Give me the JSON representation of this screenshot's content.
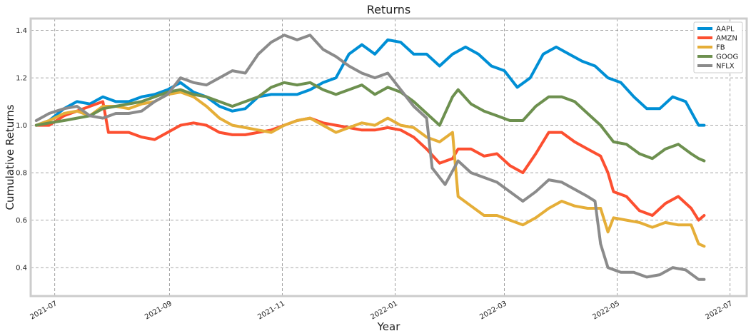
{
  "chart_data": {
    "type": "line",
    "title": "Returns",
    "xlabel": "Year",
    "ylabel": "Cumulative Returns",
    "xlim": [
      "2021-06-18",
      "2022-07-10"
    ],
    "ylim": [
      0.28,
      1.45
    ],
    "x_ticks": [
      "2021-07",
      "2021-09",
      "2021-11",
      "2022-01",
      "2022-03",
      "2022-05",
      "2022-07"
    ],
    "y_ticks": [
      "0.4",
      "0.6",
      "0.8",
      "1.0",
      "1.2",
      "1.4"
    ],
    "grid": true,
    "legend_position": "top-right",
    "series": [
      {
        "name": "AAPL",
        "color": "#008fd5",
        "points": [
          [
            "2021-06-21",
            1.0
          ],
          [
            "2021-06-28",
            1.02
          ],
          [
            "2021-07-06",
            1.07
          ],
          [
            "2021-07-13",
            1.1
          ],
          [
            "2021-07-20",
            1.09
          ],
          [
            "2021-07-27",
            1.12
          ],
          [
            "2021-08-03",
            1.1
          ],
          [
            "2021-08-10",
            1.1
          ],
          [
            "2021-08-17",
            1.12
          ],
          [
            "2021-08-24",
            1.13
          ],
          [
            "2021-08-31",
            1.15
          ],
          [
            "2021-09-07",
            1.18
          ],
          [
            "2021-09-14",
            1.14
          ],
          [
            "2021-09-21",
            1.12
          ],
          [
            "2021-09-28",
            1.08
          ],
          [
            "2021-10-05",
            1.06
          ],
          [
            "2021-10-12",
            1.07
          ],
          [
            "2021-10-19",
            1.12
          ],
          [
            "2021-10-26",
            1.13
          ],
          [
            "2021-11-02",
            1.13
          ],
          [
            "2021-11-09",
            1.13
          ],
          [
            "2021-11-16",
            1.15
          ],
          [
            "2021-11-23",
            1.18
          ],
          [
            "2021-11-30",
            1.2
          ],
          [
            "2021-12-07",
            1.3
          ],
          [
            "2021-12-14",
            1.34
          ],
          [
            "2021-12-21",
            1.3
          ],
          [
            "2021-12-28",
            1.36
          ],
          [
            "2022-01-04",
            1.35
          ],
          [
            "2022-01-11",
            1.3
          ],
          [
            "2022-01-18",
            1.3
          ],
          [
            "2022-01-25",
            1.25
          ],
          [
            "2022-02-01",
            1.3
          ],
          [
            "2022-02-08",
            1.33
          ],
          [
            "2022-02-15",
            1.3
          ],
          [
            "2022-02-22",
            1.25
          ],
          [
            "2022-03-01",
            1.23
          ],
          [
            "2022-03-08",
            1.16
          ],
          [
            "2022-03-15",
            1.2
          ],
          [
            "2022-03-22",
            1.3
          ],
          [
            "2022-03-29",
            1.33
          ],
          [
            "2022-04-05",
            1.3
          ],
          [
            "2022-04-12",
            1.27
          ],
          [
            "2022-04-19",
            1.25
          ],
          [
            "2022-04-26",
            1.2
          ],
          [
            "2022-05-03",
            1.18
          ],
          [
            "2022-05-10",
            1.12
          ],
          [
            "2022-05-17",
            1.07
          ],
          [
            "2022-05-24",
            1.07
          ],
          [
            "2022-05-31",
            1.12
          ],
          [
            "2022-06-07",
            1.1
          ],
          [
            "2022-06-14",
            1.0
          ],
          [
            "2022-06-17",
            1.0
          ]
        ]
      },
      {
        "name": "AMZN",
        "color": "#fc4f30",
        "points": [
          [
            "2021-06-21",
            1.0
          ],
          [
            "2021-06-28",
            1.0
          ],
          [
            "2021-07-06",
            1.04
          ],
          [
            "2021-07-13",
            1.06
          ],
          [
            "2021-07-20",
            1.08
          ],
          [
            "2021-07-27",
            1.1
          ],
          [
            "2021-07-30",
            0.97
          ],
          [
            "2021-08-10",
            0.97
          ],
          [
            "2021-08-17",
            0.95
          ],
          [
            "2021-08-24",
            0.94
          ],
          [
            "2021-08-31",
            0.97
          ],
          [
            "2021-09-07",
            1.0
          ],
          [
            "2021-09-14",
            1.01
          ],
          [
            "2021-09-21",
            1.0
          ],
          [
            "2021-09-28",
            0.97
          ],
          [
            "2021-10-05",
            0.96
          ],
          [
            "2021-10-12",
            0.96
          ],
          [
            "2021-10-19",
            0.97
          ],
          [
            "2021-10-26",
            0.98
          ],
          [
            "2021-11-02",
            1.0
          ],
          [
            "2021-11-09",
            1.02
          ],
          [
            "2021-11-16",
            1.03
          ],
          [
            "2021-11-23",
            1.01
          ],
          [
            "2021-11-30",
            1.0
          ],
          [
            "2021-12-07",
            0.99
          ],
          [
            "2021-12-14",
            0.98
          ],
          [
            "2021-12-21",
            0.98
          ],
          [
            "2021-12-28",
            0.99
          ],
          [
            "2022-01-04",
            0.98
          ],
          [
            "2022-01-11",
            0.95
          ],
          [
            "2022-01-18",
            0.9
          ],
          [
            "2022-01-25",
            0.84
          ],
          [
            "2022-02-01",
            0.86
          ],
          [
            "2022-02-04",
            0.9
          ],
          [
            "2022-02-11",
            0.9
          ],
          [
            "2022-02-18",
            0.87
          ],
          [
            "2022-02-25",
            0.88
          ],
          [
            "2022-03-04",
            0.83
          ],
          [
            "2022-03-11",
            0.8
          ],
          [
            "2022-03-18",
            0.88
          ],
          [
            "2022-03-25",
            0.97
          ],
          [
            "2022-04-01",
            0.97
          ],
          [
            "2022-04-08",
            0.93
          ],
          [
            "2022-04-15",
            0.9
          ],
          [
            "2022-04-22",
            0.87
          ],
          [
            "2022-04-26",
            0.8
          ],
          [
            "2022-04-29",
            0.72
          ],
          [
            "2022-05-06",
            0.7
          ],
          [
            "2022-05-13",
            0.64
          ],
          [
            "2022-05-20",
            0.62
          ],
          [
            "2022-05-27",
            0.67
          ],
          [
            "2022-06-03",
            0.7
          ],
          [
            "2022-06-10",
            0.65
          ],
          [
            "2022-06-14",
            0.6
          ],
          [
            "2022-06-17",
            0.62
          ]
        ]
      },
      {
        "name": "FB",
        "color": "#e5ae38",
        "points": [
          [
            "2021-06-21",
            1.0
          ],
          [
            "2021-06-28",
            1.02
          ],
          [
            "2021-07-06",
            1.05
          ],
          [
            "2021-07-13",
            1.06
          ],
          [
            "2021-07-20",
            1.04
          ],
          [
            "2021-07-27",
            1.08
          ],
          [
            "2021-08-03",
            1.08
          ],
          [
            "2021-08-10",
            1.07
          ],
          [
            "2021-08-17",
            1.09
          ],
          [
            "2021-08-24",
            1.1
          ],
          [
            "2021-08-31",
            1.13
          ],
          [
            "2021-09-07",
            1.14
          ],
          [
            "2021-09-14",
            1.12
          ],
          [
            "2021-09-21",
            1.08
          ],
          [
            "2021-09-28",
            1.03
          ],
          [
            "2021-10-05",
            1.0
          ],
          [
            "2021-10-12",
            0.99
          ],
          [
            "2021-10-19",
            0.98
          ],
          [
            "2021-10-26",
            0.97
          ],
          [
            "2021-11-02",
            1.0
          ],
          [
            "2021-11-09",
            1.02
          ],
          [
            "2021-11-16",
            1.03
          ],
          [
            "2021-11-23",
            1.0
          ],
          [
            "2021-11-30",
            0.97
          ],
          [
            "2021-12-07",
            0.99
          ],
          [
            "2021-12-14",
            1.01
          ],
          [
            "2021-12-21",
            1.0
          ],
          [
            "2021-12-28",
            1.03
          ],
          [
            "2022-01-04",
            1.0
          ],
          [
            "2022-01-11",
            0.99
          ],
          [
            "2022-01-18",
            0.95
          ],
          [
            "2022-01-25",
            0.93
          ],
          [
            "2022-02-01",
            0.97
          ],
          [
            "2022-02-04",
            0.7
          ],
          [
            "2022-02-11",
            0.66
          ],
          [
            "2022-02-18",
            0.62
          ],
          [
            "2022-02-25",
            0.62
          ],
          [
            "2022-03-04",
            0.6
          ],
          [
            "2022-03-11",
            0.58
          ],
          [
            "2022-03-18",
            0.61
          ],
          [
            "2022-03-25",
            0.65
          ],
          [
            "2022-04-01",
            0.68
          ],
          [
            "2022-04-08",
            0.66
          ],
          [
            "2022-04-15",
            0.65
          ],
          [
            "2022-04-22",
            0.65
          ],
          [
            "2022-04-26",
            0.55
          ],
          [
            "2022-04-29",
            0.61
          ],
          [
            "2022-05-06",
            0.6
          ],
          [
            "2022-05-13",
            0.59
          ],
          [
            "2022-05-20",
            0.57
          ],
          [
            "2022-05-27",
            0.59
          ],
          [
            "2022-06-03",
            0.58
          ],
          [
            "2022-06-10",
            0.58
          ],
          [
            "2022-06-14",
            0.5
          ],
          [
            "2022-06-17",
            0.49
          ]
        ]
      },
      {
        "name": "GOOG",
        "color": "#6d904f",
        "points": [
          [
            "2021-06-21",
            1.0
          ],
          [
            "2021-06-28",
            1.01
          ],
          [
            "2021-07-06",
            1.02
          ],
          [
            "2021-07-13",
            1.03
          ],
          [
            "2021-07-20",
            1.04
          ],
          [
            "2021-07-27",
            1.07
          ],
          [
            "2021-08-03",
            1.08
          ],
          [
            "2021-08-10",
            1.09
          ],
          [
            "2021-08-17",
            1.1
          ],
          [
            "2021-08-24",
            1.12
          ],
          [
            "2021-08-31",
            1.14
          ],
          [
            "2021-09-07",
            1.15
          ],
          [
            "2021-09-14",
            1.13
          ],
          [
            "2021-09-21",
            1.12
          ],
          [
            "2021-09-28",
            1.1
          ],
          [
            "2021-10-05",
            1.08
          ],
          [
            "2021-10-12",
            1.1
          ],
          [
            "2021-10-19",
            1.12
          ],
          [
            "2021-10-26",
            1.16
          ],
          [
            "2021-11-02",
            1.18
          ],
          [
            "2021-11-09",
            1.17
          ],
          [
            "2021-11-16",
            1.18
          ],
          [
            "2021-11-23",
            1.15
          ],
          [
            "2021-11-30",
            1.13
          ],
          [
            "2021-12-07",
            1.15
          ],
          [
            "2021-12-14",
            1.17
          ],
          [
            "2021-12-21",
            1.13
          ],
          [
            "2021-12-28",
            1.16
          ],
          [
            "2022-01-04",
            1.14
          ],
          [
            "2022-01-11",
            1.1
          ],
          [
            "2022-01-18",
            1.05
          ],
          [
            "2022-01-25",
            1.0
          ],
          [
            "2022-02-01",
            1.12
          ],
          [
            "2022-02-04",
            1.15
          ],
          [
            "2022-02-11",
            1.09
          ],
          [
            "2022-02-18",
            1.06
          ],
          [
            "2022-02-25",
            1.04
          ],
          [
            "2022-03-04",
            1.02
          ],
          [
            "2022-03-11",
            1.02
          ],
          [
            "2022-03-18",
            1.08
          ],
          [
            "2022-03-25",
            1.12
          ],
          [
            "2022-04-01",
            1.12
          ],
          [
            "2022-04-08",
            1.1
          ],
          [
            "2022-04-15",
            1.05
          ],
          [
            "2022-04-22",
            1.0
          ],
          [
            "2022-04-29",
            0.93
          ],
          [
            "2022-05-06",
            0.92
          ],
          [
            "2022-05-13",
            0.88
          ],
          [
            "2022-05-20",
            0.86
          ],
          [
            "2022-05-27",
            0.9
          ],
          [
            "2022-06-03",
            0.92
          ],
          [
            "2022-06-10",
            0.88
          ],
          [
            "2022-06-14",
            0.86
          ],
          [
            "2022-06-17",
            0.85
          ]
        ]
      },
      {
        "name": "NFLX",
        "color": "#8b8b8b",
        "points": [
          [
            "2021-06-21",
            1.02
          ],
          [
            "2021-06-28",
            1.05
          ],
          [
            "2021-07-06",
            1.07
          ],
          [
            "2021-07-13",
            1.08
          ],
          [
            "2021-07-20",
            1.04
          ],
          [
            "2021-07-27",
            1.03
          ],
          [
            "2021-08-03",
            1.05
          ],
          [
            "2021-08-10",
            1.05
          ],
          [
            "2021-08-17",
            1.06
          ],
          [
            "2021-08-24",
            1.1
          ],
          [
            "2021-08-31",
            1.13
          ],
          [
            "2021-09-07",
            1.2
          ],
          [
            "2021-09-14",
            1.18
          ],
          [
            "2021-09-21",
            1.17
          ],
          [
            "2021-09-28",
            1.2
          ],
          [
            "2021-10-05",
            1.23
          ],
          [
            "2021-10-12",
            1.22
          ],
          [
            "2021-10-19",
            1.3
          ],
          [
            "2021-10-26",
            1.35
          ],
          [
            "2021-11-02",
            1.38
          ],
          [
            "2021-11-09",
            1.36
          ],
          [
            "2021-11-16",
            1.38
          ],
          [
            "2021-11-23",
            1.32
          ],
          [
            "2021-11-30",
            1.29
          ],
          [
            "2021-12-07",
            1.25
          ],
          [
            "2021-12-14",
            1.22
          ],
          [
            "2021-12-21",
            1.2
          ],
          [
            "2021-12-28",
            1.22
          ],
          [
            "2022-01-04",
            1.15
          ],
          [
            "2022-01-11",
            1.08
          ],
          [
            "2022-01-18",
            1.03
          ],
          [
            "2022-01-21",
            0.82
          ],
          [
            "2022-01-28",
            0.75
          ],
          [
            "2022-02-04",
            0.85
          ],
          [
            "2022-02-11",
            0.8
          ],
          [
            "2022-02-18",
            0.78
          ],
          [
            "2022-02-25",
            0.76
          ],
          [
            "2022-03-04",
            0.72
          ],
          [
            "2022-03-11",
            0.68
          ],
          [
            "2022-03-18",
            0.72
          ],
          [
            "2022-03-25",
            0.77
          ],
          [
            "2022-04-01",
            0.76
          ],
          [
            "2022-04-08",
            0.73
          ],
          [
            "2022-04-15",
            0.7
          ],
          [
            "2022-04-19",
            0.68
          ],
          [
            "2022-04-22",
            0.5
          ],
          [
            "2022-04-26",
            0.4
          ],
          [
            "2022-05-03",
            0.38
          ],
          [
            "2022-05-10",
            0.38
          ],
          [
            "2022-05-17",
            0.36
          ],
          [
            "2022-05-24",
            0.37
          ],
          [
            "2022-05-31",
            0.4
          ],
          [
            "2022-06-07",
            0.39
          ],
          [
            "2022-06-14",
            0.35
          ],
          [
            "2022-06-17",
            0.35
          ]
        ]
      }
    ]
  }
}
